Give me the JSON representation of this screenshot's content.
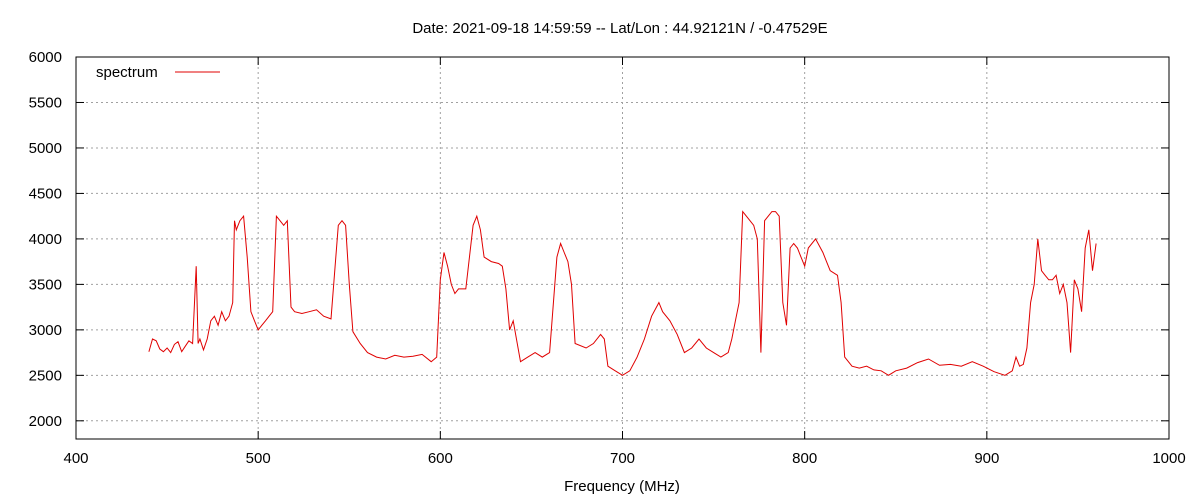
{
  "chart_data": {
    "type": "line",
    "title": "Date: 2021-09-18 14:59:59  --  Lat/Lon : 44.92121N / -0.47529E",
    "xlabel": "Frequency (MHz)",
    "ylabel": "",
    "xlim": [
      400,
      1000
    ],
    "ylim": [
      1800,
      6000
    ],
    "xticks": [
      400,
      500,
      600,
      700,
      800,
      900,
      1000
    ],
    "yticks": [
      2000,
      2500,
      3000,
      3500,
      4000,
      4500,
      5000,
      5500,
      6000
    ],
    "grid": true,
    "legend": "top-left",
    "colors": {
      "spectrum": "#e00000",
      "grid": "#a0a0a0",
      "axis": "#000000"
    },
    "series": [
      {
        "name": "spectrum",
        "x": [
          440,
          442,
          444,
          446,
          448,
          450,
          452,
          454,
          456,
          458,
          460,
          462,
          464,
          466,
          467,
          468,
          470,
          472,
          474,
          476,
          478,
          480,
          482,
          484,
          486,
          487,
          488,
          490,
          492,
          494,
          496,
          498,
          500,
          502,
          504,
          506,
          508,
          510,
          512,
          514,
          516,
          518,
          520,
          524,
          528,
          532,
          536,
          540,
          544,
          546,
          548,
          550,
          552,
          556,
          560,
          565,
          570,
          575,
          580,
          585,
          590,
          595,
          598,
          600,
          602,
          604,
          606,
          608,
          610,
          614,
          618,
          620,
          622,
          624,
          628,
          632,
          634,
          636,
          638,
          640,
          644,
          648,
          652,
          656,
          660,
          664,
          666,
          668,
          670,
          672,
          674,
          680,
          684,
          688,
          690,
          692,
          696,
          700,
          704,
          708,
          712,
          716,
          720,
          722,
          726,
          730,
          734,
          738,
          742,
          746,
          750,
          754,
          758,
          760,
          762,
          764,
          766,
          768,
          770,
          772,
          774,
          776,
          778,
          780,
          782,
          784,
          786,
          788,
          790,
          792,
          794,
          796,
          798,
          800,
          802,
          806,
          810,
          812,
          814,
          818,
          820,
          822,
          826,
          830,
          834,
          838,
          842,
          846,
          850,
          856,
          862,
          868,
          874,
          880,
          886,
          892,
          898,
          904,
          910,
          914,
          916,
          918,
          920,
          922,
          924,
          926,
          928,
          930,
          932,
          934,
          936,
          938,
          940,
          942,
          944,
          946,
          948,
          950,
          952,
          954,
          956,
          958,
          960
        ],
        "values": [
          2760,
          2900,
          2880,
          2790,
          2760,
          2800,
          2750,
          2840,
          2870,
          2760,
          2820,
          2880,
          2850,
          3700,
          2850,
          2900,
          2780,
          2900,
          3100,
          3150,
          3050,
          3200,
          3100,
          3150,
          3300,
          4200,
          4100,
          4200,
          4250,
          3800,
          3200,
          3100,
          3000,
          3050,
          3100,
          3150,
          3200,
          4250,
          4200,
          4150,
          4200,
          3250,
          3200,
          3180,
          3200,
          3220,
          3150,
          3120,
          4150,
          4200,
          4150,
          3500,
          2980,
          2850,
          2750,
          2700,
          2680,
          2720,
          2700,
          2710,
          2730,
          2650,
          2700,
          3550,
          3850,
          3700,
          3500,
          3400,
          3450,
          3450,
          4150,
          4250,
          4100,
          3800,
          3750,
          3730,
          3700,
          3450,
          3000,
          3100,
          2650,
          2700,
          2750,
          2700,
          2750,
          3800,
          3950,
          3850,
          3750,
          3500,
          2850,
          2800,
          2850,
          2950,
          2900,
          2600,
          2550,
          2500,
          2550,
          2700,
          2900,
          3150,
          3300,
          3200,
          3100,
          2950,
          2750,
          2800,
          2900,
          2800,
          2750,
          2700,
          2750,
          2900,
          3100,
          3300,
          4300,
          4250,
          4200,
          4150,
          4000,
          2750,
          4200,
          4250,
          4300,
          4300,
          4250,
          3300,
          3050,
          3900,
          3950,
          3900,
          3800,
          3700,
          3900,
          4000,
          3850,
          3750,
          3650,
          3600,
          3300,
          2700,
          2600,
          2580,
          2600,
          2560,
          2550,
          2500,
          2550,
          2580,
          2640,
          2680,
          2610,
          2620,
          2600,
          2650,
          2600,
          2540,
          2500,
          2550,
          2700,
          2600,
          2620,
          2800,
          3300,
          3500,
          4000,
          3650,
          3600,
          3550,
          3550,
          3600,
          3400,
          3500,
          3300,
          2750,
          3550,
          3450,
          3200,
          3900,
          4100,
          3650,
          3950
        ]
      }
    ]
  }
}
